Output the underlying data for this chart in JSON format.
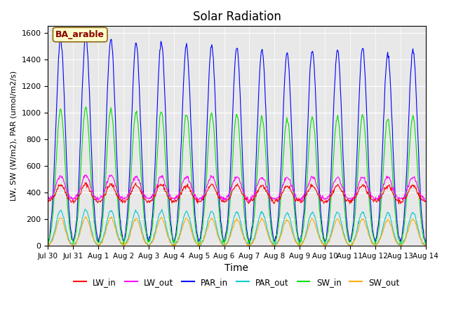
{
  "title": "Solar Radiation",
  "xlabel": "Time",
  "ylabel": "LW, SW (W/m2), PAR (umol/m2/s)",
  "annotation": "BA_arable",
  "ylim": [
    0,
    1650
  ],
  "background_color": "#e8e8e8",
  "series": {
    "LW_in": {
      "color": "#ff0000",
      "amp_day": 130,
      "base_night": 330
    },
    "LW_out": {
      "color": "#ff00ff",
      "amp_day": 180,
      "base_night": 345
    },
    "PAR_in": {
      "color": "#0000ff",
      "amp_day": 1550,
      "base_night": 0
    },
    "PAR_out": {
      "color": "#00cccc",
      "amp_day": 265,
      "base_night": 0
    },
    "SW_in": {
      "color": "#00dd00",
      "amp_day": 1020,
      "base_night": 0
    },
    "SW_out": {
      "color": "#ffaa00",
      "amp_day": 210,
      "base_night": 0
    }
  },
  "tick_labels": [
    "Jul 30",
    "Jul 31",
    "Aug 1",
    "Aug 2",
    "Aug 3",
    "Aug 4",
    "Aug 5",
    "Aug 6",
    "Aug 7",
    "Aug 8",
    "Aug 9",
    "Aug 10",
    "Aug 11",
    "Aug 12",
    "Aug 13",
    "Aug 14"
  ],
  "n_days": 16,
  "pts_per_day": 48,
  "yticks": [
    0,
    200,
    400,
    600,
    800,
    1000,
    1200,
    1400,
    1600
  ],
  "legend_order": [
    "LW_in",
    "LW_out",
    "PAR_in",
    "PAR_out",
    "SW_in",
    "SW_out"
  ]
}
